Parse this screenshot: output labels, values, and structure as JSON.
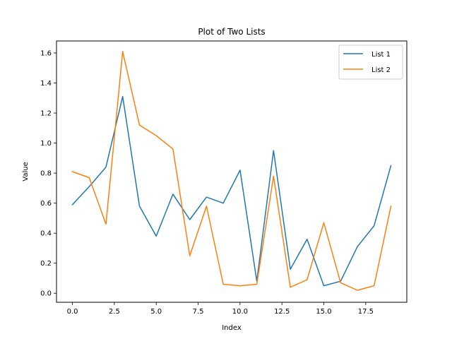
{
  "chart_data": {
    "type": "line",
    "title": "Plot of Two Lists",
    "xlabel": "Index",
    "ylabel": "Value",
    "x": [
      0,
      1,
      2,
      3,
      4,
      5,
      6,
      7,
      8,
      9,
      10,
      11,
      12,
      13,
      14,
      15,
      16,
      17,
      18,
      19
    ],
    "xlim": [
      -0.95,
      19.95
    ],
    "ylim": [
      -0.06,
      1.68
    ],
    "xticks": [
      0.0,
      2.5,
      5.0,
      7.5,
      10.0,
      12.5,
      15.0,
      17.5
    ],
    "xtick_labels": [
      "0.0",
      "2.5",
      "5.0",
      "7.5",
      "10.0",
      "12.5",
      "15.0",
      "17.5"
    ],
    "yticks": [
      0.0,
      0.2,
      0.4,
      0.6,
      0.8,
      1.0,
      1.2,
      1.4,
      1.6
    ],
    "ytick_labels": [
      "0.0",
      "0.2",
      "0.4",
      "0.6",
      "0.8",
      "1.0",
      "1.2",
      "1.4",
      "1.6"
    ],
    "grid": false,
    "legend_position": "top-right",
    "series": [
      {
        "name": "List 1",
        "color": "#1f77b4",
        "values": [
          0.59,
          0.71,
          0.84,
          1.31,
          0.58,
          0.38,
          0.66,
          0.49,
          0.64,
          0.6,
          0.82,
          0.08,
          0.95,
          0.16,
          0.36,
          0.05,
          0.08,
          0.31,
          0.45,
          0.85
        ]
      },
      {
        "name": "List 2",
        "color": "#ff7f0e",
        "values": [
          0.81,
          0.77,
          0.46,
          1.61,
          1.12,
          1.05,
          0.96,
          0.25,
          0.58,
          0.06,
          0.05,
          0.06,
          0.78,
          0.04,
          0.09,
          0.47,
          0.07,
          0.02,
          0.05,
          0.58
        ]
      }
    ]
  }
}
